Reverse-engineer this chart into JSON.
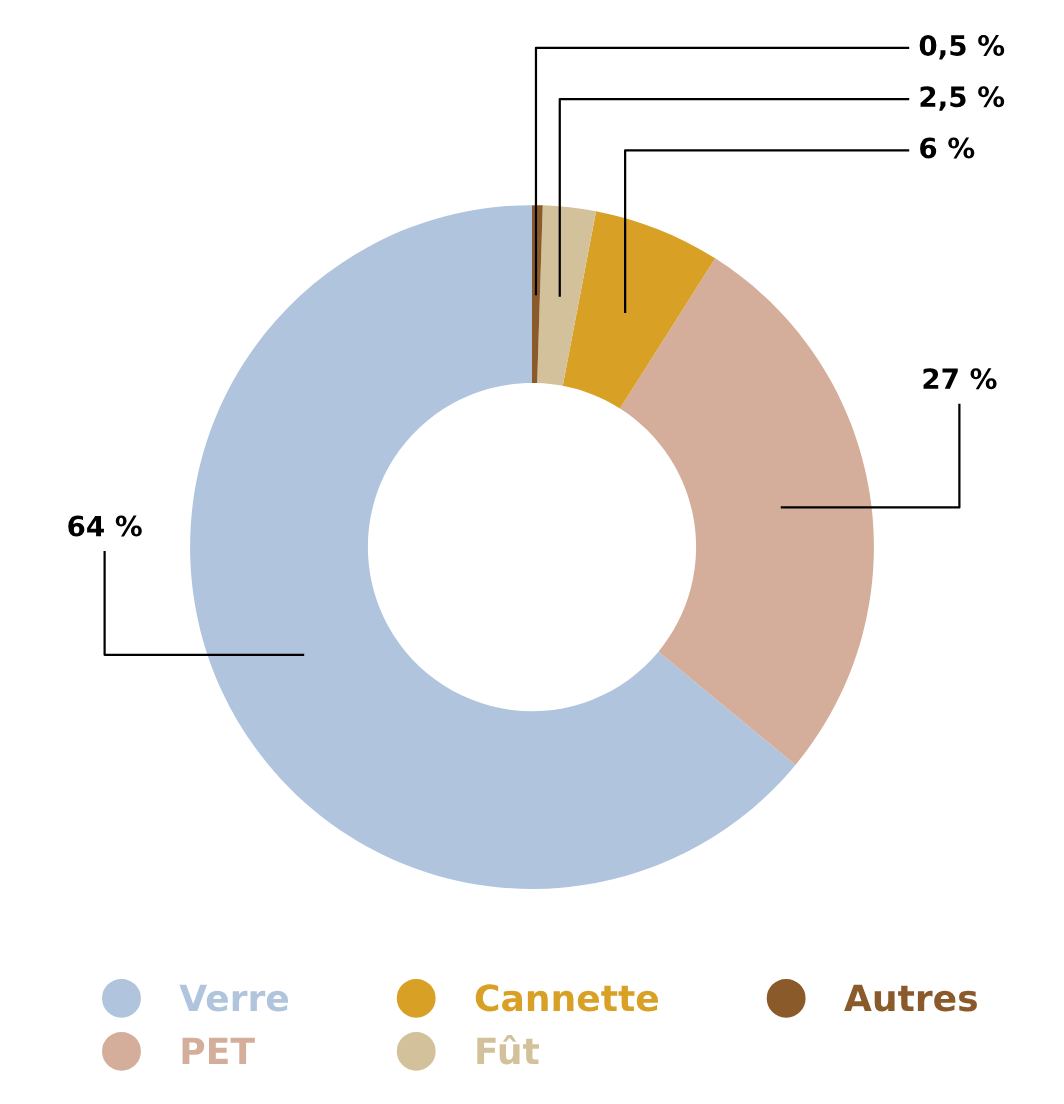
{
  "chart_data": {
    "type": "donut",
    "categories": [
      "Verre",
      "PET",
      "Cannette",
      "Fût",
      "Autres"
    ],
    "values": [
      64,
      27,
      6,
      2.5,
      0.5
    ],
    "colors": [
      "#b0c4de",
      "#d4ae9a",
      "#d9a026",
      "#d2c19b",
      "#8b5a2b"
    ],
    "value_labels": [
      "64 %",
      "27 %",
      "6 %",
      "2,5 %",
      "0,5 %"
    ],
    "legend": "bottom"
  }
}
